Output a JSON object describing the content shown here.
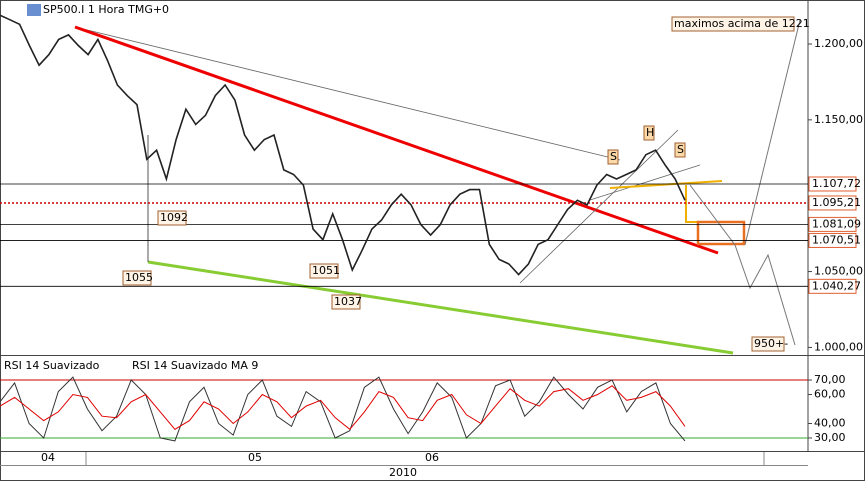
{
  "chart_data": [
    {
      "type": "line",
      "title": "SP500.I 1 Hora TMG+0",
      "series": [
        {
          "name": "SP500.I",
          "color": "#222222",
          "values": [
            1.219,
            1.216,
            1.213,
            1.199,
            1.186,
            1.193,
            1.203,
            1.206,
            1.199,
            1.193,
            1.203,
            1.189,
            1.173,
            1.166,
            1.16,
            1.124,
            1.13,
            1.111,
            1.137,
            1.157,
            1.147,
            1.153,
            1.166,
            1.173,
            1.163,
            1.14,
            1.13,
            1.137,
            1.14,
            1.117,
            1.114,
            1.107,
            1.078,
            1.071,
            1.088,
            1.071,
            1.051,
            1.064,
            1.078,
            1.084,
            1.094,
            1.101,
            1.094,
            1.081,
            1.074,
            1.081,
            1.094,
            1.101,
            1.104,
            1.104,
            1.068,
            1.058,
            1.055,
            1.048,
            1.055,
            1.068,
            1.071,
            1.081,
            1.091,
            1.097,
            1.094,
            1.107,
            1.114,
            1.111,
            1.114,
            1.117,
            1.127,
            1.13,
            1.12,
            1.111,
            1.097
          ]
        }
      ],
      "ylim": [
        0.995,
        1.229
      ],
      "yticks": [
        {
          "value": 1.2,
          "label": "1.200,00"
        },
        {
          "value": 1.15,
          "label": "1.150,00"
        },
        {
          "value": 1.05,
          "label": "1.050,00"
        },
        {
          "value": 1.0,
          "label": "1.000,00"
        }
      ],
      "levels": [
        {
          "value": 1.10772,
          "label": "1.107,72",
          "color": "#000000"
        },
        {
          "value": 1.09521,
          "label": "1.095,21",
          "color": "#cc0000"
        },
        {
          "value": 1.08109,
          "label": "1.081,09",
          "color": "#000000"
        },
        {
          "value": 1.07051,
          "label": "1.070,51",
          "color": "#000000"
        },
        {
          "value": 1.04027,
          "label": "1.040,27",
          "color": "#000000"
        }
      ],
      "annotations": [
        "maximos acima de 1221",
        "1092",
        "1055",
        "1051",
        "1037",
        "950+-",
        "S",
        "H",
        "S"
      ],
      "x_labels": [
        "04",
        "05",
        "06"
      ],
      "x_year": "2010"
    },
    {
      "type": "line",
      "series": [
        {
          "name": "RSI 14 Suavizado",
          "color": "#333333",
          "values": [
            55,
            68,
            40,
            30,
            62,
            72,
            50,
            35,
            45,
            70,
            60,
            30,
            28,
            55,
            65,
            40,
            32,
            60,
            70,
            45,
            38,
            62,
            55,
            30,
            35,
            65,
            72,
            50,
            33,
            48,
            68,
            58,
            30,
            40,
            66,
            70,
            45,
            55,
            72,
            60,
            50,
            65,
            70,
            48,
            62,
            68,
            40,
            28
          ]
        },
        {
          "name": "RSI 14 Suavizado MA 9",
          "color": "#e00000",
          "values": [
            52,
            58,
            50,
            42,
            48,
            60,
            58,
            45,
            44,
            55,
            60,
            48,
            36,
            42,
            55,
            50,
            40,
            48,
            60,
            55,
            44,
            52,
            56,
            44,
            36,
            48,
            62,
            58,
            44,
            42,
            56,
            60,
            46,
            40,
            52,
            64,
            56,
            52,
            62,
            64,
            56,
            60,
            66,
            56,
            58,
            62,
            52,
            38
          ]
        }
      ],
      "ylim": [
        21,
        86.6
      ],
      "yticks": [
        {
          "value": 70,
          "label": "70,00"
        },
        {
          "value": 60,
          "label": "60,00"
        },
        {
          "value": 40,
          "label": "40,00"
        },
        {
          "value": 30,
          "label": "30,00"
        }
      ],
      "reference_lines": [
        {
          "value": 70,
          "color": "#cc0000"
        },
        {
          "value": 30,
          "color": "#33aa33"
        }
      ]
    }
  ]
}
